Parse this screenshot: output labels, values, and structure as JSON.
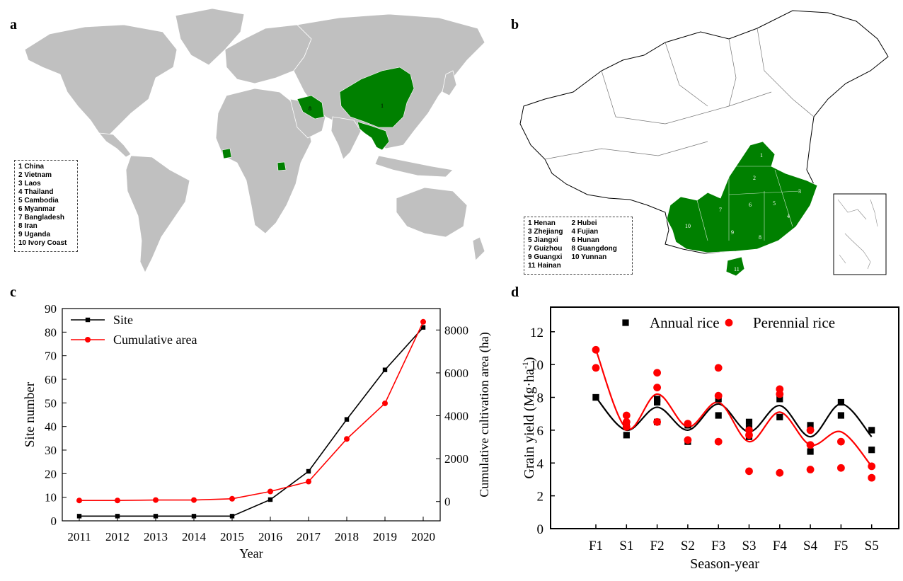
{
  "panels": {
    "a": {
      "letter": "a",
      "legend": [
        "1 China",
        "2 Vietnam",
        "3 Laos",
        "4 Thailand",
        "5 Cambodia",
        "6 Myanmar",
        "7 Bangladesh",
        "8 Iran",
        "9 Uganda",
        "10 Ivory Coast"
      ],
      "labels": {
        "china": "1",
        "iran": "8"
      },
      "colors": {
        "land": "#c0c0c0",
        "highlight": "#008000",
        "water": "#ffffff"
      }
    },
    "b": {
      "letter": "b",
      "legend_col1": [
        "1 Henan",
        "3 Zhejiang",
        "5 Jiangxi",
        "7 Guizhou",
        "9 Guangxi",
        "11 Hainan"
      ],
      "legend_col2": [
        "2 Hubei",
        "4 Fujian",
        "6 Hunan",
        "8 Guangdong",
        "10 Yunnan"
      ],
      "province_numbers": [
        "1",
        "2",
        "3",
        "4",
        "5",
        "6",
        "7",
        "8",
        "9",
        "10",
        "11"
      ]
    },
    "c": {
      "letter": "c"
    },
    "d": {
      "letter": "d"
    }
  },
  "chart_data": [
    {
      "panel": "c",
      "type": "line",
      "xlabel": "Year",
      "ylabel": "Site number",
      "y2label": "Cumulative cultivation area (ha)",
      "x": [
        "2011",
        "2012",
        "2013",
        "2014",
        "2015",
        "2016",
        "2017",
        "2018",
        "2019",
        "2020"
      ],
      "ylim": [
        0,
        90
      ],
      "yticks": [
        "0",
        "10",
        "20",
        "30",
        "40",
        "50",
        "60",
        "70",
        "80",
        "90"
      ],
      "y2lim": [
        -900,
        9000
      ],
      "y2ticks": [
        "0",
        "2000",
        "4000",
        "6000",
        "8000"
      ],
      "series": [
        {
          "name": "Site",
          "axis": "left",
          "color": "#000000",
          "marker": "square",
          "values": [
            2,
            2,
            2,
            2,
            2,
            9,
            21,
            43,
            64,
            82
          ]
        },
        {
          "name": "Cumulative area",
          "axis": "right",
          "color": "#ff0000",
          "marker": "circle",
          "values": [
            50,
            50,
            70,
            70,
            130,
            470,
            930,
            2920,
            4580,
            8380
          ]
        }
      ]
    },
    {
      "panel": "d",
      "type": "scatter",
      "xlabel": "Season-year",
      "ylabel": "Grain yield (Mg·ha",
      "ylabel_sup": "-1",
      "ylabel_close": ")",
      "categories": [
        "F1",
        "S1",
        "F2",
        "S2",
        "F3",
        "S3",
        "F4",
        "S4",
        "F5",
        "S5"
      ],
      "ylim": [
        0,
        13.5
      ],
      "yticks": [
        "0",
        "2",
        "4",
        "6",
        "8",
        "10",
        "12"
      ],
      "series": [
        {
          "name": "Annual rice",
          "color": "#000000",
          "marker": "square",
          "points": [
            [
              0,
              8.0
            ],
            [
              0,
              8.0
            ],
            [
              1,
              5.7
            ],
            [
              1,
              6.2
            ],
            [
              2,
              7.7
            ],
            [
              2,
              7.9
            ],
            [
              2,
              6.5
            ],
            [
              3,
              5.3
            ],
            [
              3,
              6.3
            ],
            [
              4,
              7.9
            ],
            [
              4,
              6.9
            ],
            [
              5,
              6.5
            ],
            [
              5,
              5.6
            ],
            [
              5,
              6.1
            ],
            [
              6,
              7.9
            ],
            [
              6,
              6.8
            ],
            [
              7,
              6.3
            ],
            [
              7,
              4.7
            ],
            [
              8,
              7.7
            ],
            [
              8,
              6.9
            ],
            [
              9,
              6.0
            ],
            [
              9,
              4.8
            ]
          ],
          "fit": [
            8.0,
            6.0,
            7.4,
            6.0,
            7.6,
            5.9,
            7.5,
            5.6,
            7.6,
            5.6
          ]
        },
        {
          "name": "Perennial rice",
          "color": "#ff0000",
          "marker": "circle",
          "points": [
            [
              0,
              10.9
            ],
            [
              0,
              9.8
            ],
            [
              1,
              6.9
            ],
            [
              1,
              6.5
            ],
            [
              1,
              6.2
            ],
            [
              2,
              9.5
            ],
            [
              2,
              8.6
            ],
            [
              2,
              6.5
            ],
            [
              3,
              6.4
            ],
            [
              3,
              5.4
            ],
            [
              4,
              9.8
            ],
            [
              4,
              8.1
            ],
            [
              4,
              5.3
            ],
            [
              5,
              6.0
            ],
            [
              5,
              5.7
            ],
            [
              5,
              3.5
            ],
            [
              6,
              8.5
            ],
            [
              6,
              8.2
            ],
            [
              6,
              3.4
            ],
            [
              7,
              6.0
            ],
            [
              7,
              5.1
            ],
            [
              7,
              3.6
            ],
            [
              8,
              5.3
            ],
            [
              8,
              3.7
            ],
            [
              9,
              3.8
            ],
            [
              9,
              3.1
            ]
          ],
          "fit": [
            10.9,
            6.1,
            8.2,
            6.2,
            7.7,
            5.3,
            7.1,
            5.1,
            5.9,
            3.8
          ]
        }
      ]
    }
  ]
}
